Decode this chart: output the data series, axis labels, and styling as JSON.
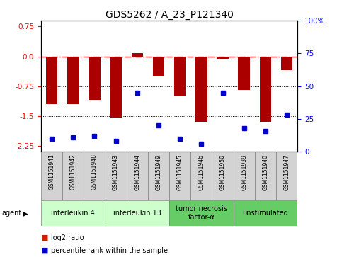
{
  "title": "GDS5262 / A_23_P121340",
  "samples": [
    "GSM1151941",
    "GSM1151942",
    "GSM1151948",
    "GSM1151943",
    "GSM1151944",
    "GSM1151949",
    "GSM1151945",
    "GSM1151946",
    "GSM1151950",
    "GSM1151939",
    "GSM1151940",
    "GSM1151947"
  ],
  "log2_ratio": [
    -1.2,
    -1.2,
    -1.1,
    -1.55,
    0.08,
    -0.5,
    -1.0,
    -1.65,
    -0.06,
    -0.85,
    -1.65,
    -0.35
  ],
  "percentile": [
    10,
    11,
    12,
    8,
    45,
    20,
    10,
    6,
    45,
    18,
    16,
    28
  ],
  "groups": [
    {
      "label": "interleukin 4",
      "start": 0,
      "end": 3,
      "color": "#ccffcc"
    },
    {
      "label": "interleukin 13",
      "start": 3,
      "end": 6,
      "color": "#ccffcc"
    },
    {
      "label": "tumor necrosis\nfactor-α",
      "start": 6,
      "end": 9,
      "color": "#66cc66"
    },
    {
      "label": "unstimulated",
      "start": 9,
      "end": 12,
      "color": "#66cc66"
    }
  ],
  "ylim": [
    -2.4,
    0.9
  ],
  "yticks_left": [
    0.75,
    0.0,
    -0.75,
    -1.5,
    -2.25
  ],
  "yticks_right": [
    100,
    75,
    50,
    25,
    0
  ],
  "bar_color": "#aa0000",
  "dot_color": "#0000cc",
  "bar_width": 0.55,
  "legend_log2_color": "#cc2200",
  "legend_pct_color": "#0000cc",
  "title_fontsize": 10,
  "tick_fontsize": 7.5,
  "gsm_fontsize": 5.5,
  "group_fontsize": 7,
  "legend_fontsize": 7
}
